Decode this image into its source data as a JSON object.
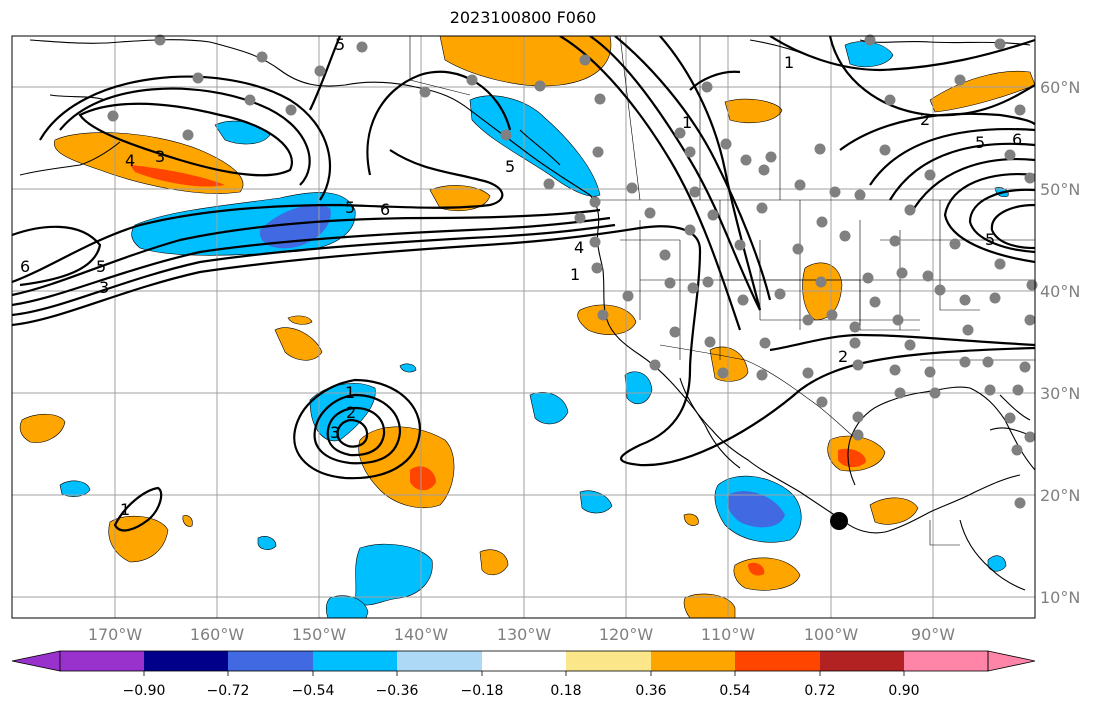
{
  "title": "2023100800 F060",
  "map": {
    "type": "contour-map",
    "longitude_labels": [
      "170°W",
      "160°W",
      "150°W",
      "140°W",
      "130°W",
      "120°W",
      "110°W",
      "100°W",
      "90°W"
    ],
    "latitude_labels": [
      "60°N",
      "50°N",
      "40°N",
      "30°N",
      "20°N",
      "10°N"
    ],
    "contour_labels": [
      "1",
      "2",
      "3",
      "4",
      "5",
      "6"
    ],
    "colors": {
      "gridlines": "#a0a0a0",
      "coastlines": "#000000",
      "contours": "#000000",
      "station_dots": "#808080",
      "marker": "#000000"
    }
  },
  "colorbar": {
    "tick_labels": [
      "−0.90",
      "−0.72",
      "−0.54",
      "−0.36",
      "−0.18",
      "0.18",
      "0.36",
      "0.54",
      "0.72",
      "0.90"
    ],
    "colors": [
      "#9932cc",
      "#00008b",
      "#4169e1",
      "#00bfff",
      "#add8f6",
      "#ffffff",
      "#fbe68a",
      "#ffa500",
      "#ff4500",
      "#b22222",
      "#ff85a8"
    ]
  }
}
